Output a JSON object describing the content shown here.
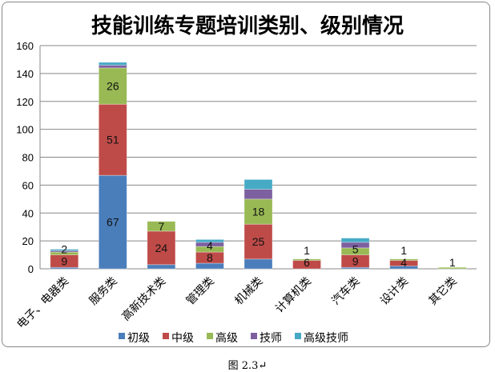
{
  "chart_data": {
    "type": "bar",
    "stacked": true,
    "title": "技能训练专题培训类别、级别情况",
    "categories": [
      "电子、电器类",
      "服务类",
      "高新技术类",
      "管理类",
      "机械类",
      "计算机类",
      "汽车类",
      "设计类",
      "其它类"
    ],
    "series": [
      {
        "name": "初级",
        "color": "#4a7ebb",
        "values": [
          1,
          67,
          3,
          4,
          7,
          0,
          1,
          2,
          0
        ],
        "labels": [
          null,
          "67",
          null,
          null,
          null,
          null,
          null,
          null,
          null
        ]
      },
      {
        "name": "中级",
        "color": "#be4b48",
        "values": [
          9,
          51,
          24,
          8,
          25,
          6,
          9,
          4,
          0
        ],
        "labels": [
          "9",
          "51",
          "24",
          "8",
          "25",
          "6",
          "9",
          "4",
          null
        ]
      },
      {
        "name": "高级",
        "color": "#98b954",
        "values": [
          2,
          26,
          7,
          4,
          18,
          1,
          5,
          1,
          1
        ],
        "labels": [
          "2",
          "26",
          "7",
          "4",
          "18",
          "1",
          "5",
          "1",
          "1"
        ]
      },
      {
        "name": "技师",
        "color": "#7d60a0",
        "values": [
          1,
          2,
          0,
          3,
          7,
          0,
          4,
          0,
          0
        ],
        "labels": [
          null,
          null,
          null,
          null,
          null,
          null,
          null,
          null,
          null
        ]
      },
      {
        "name": "高级技师",
        "color": "#46aac5",
        "values": [
          1,
          2,
          0,
          2,
          7,
          0,
          3,
          0,
          0
        ],
        "labels": [
          null,
          null,
          null,
          null,
          null,
          null,
          null,
          null,
          null
        ]
      }
    ],
    "ylim": [
      0,
      160
    ],
    "yticks": [
      "0",
      "20",
      "40",
      "60",
      "80",
      "100",
      "120",
      "140",
      "160"
    ],
    "grid": true,
    "legend": "bottom"
  },
  "caption": "图 2.3↵"
}
